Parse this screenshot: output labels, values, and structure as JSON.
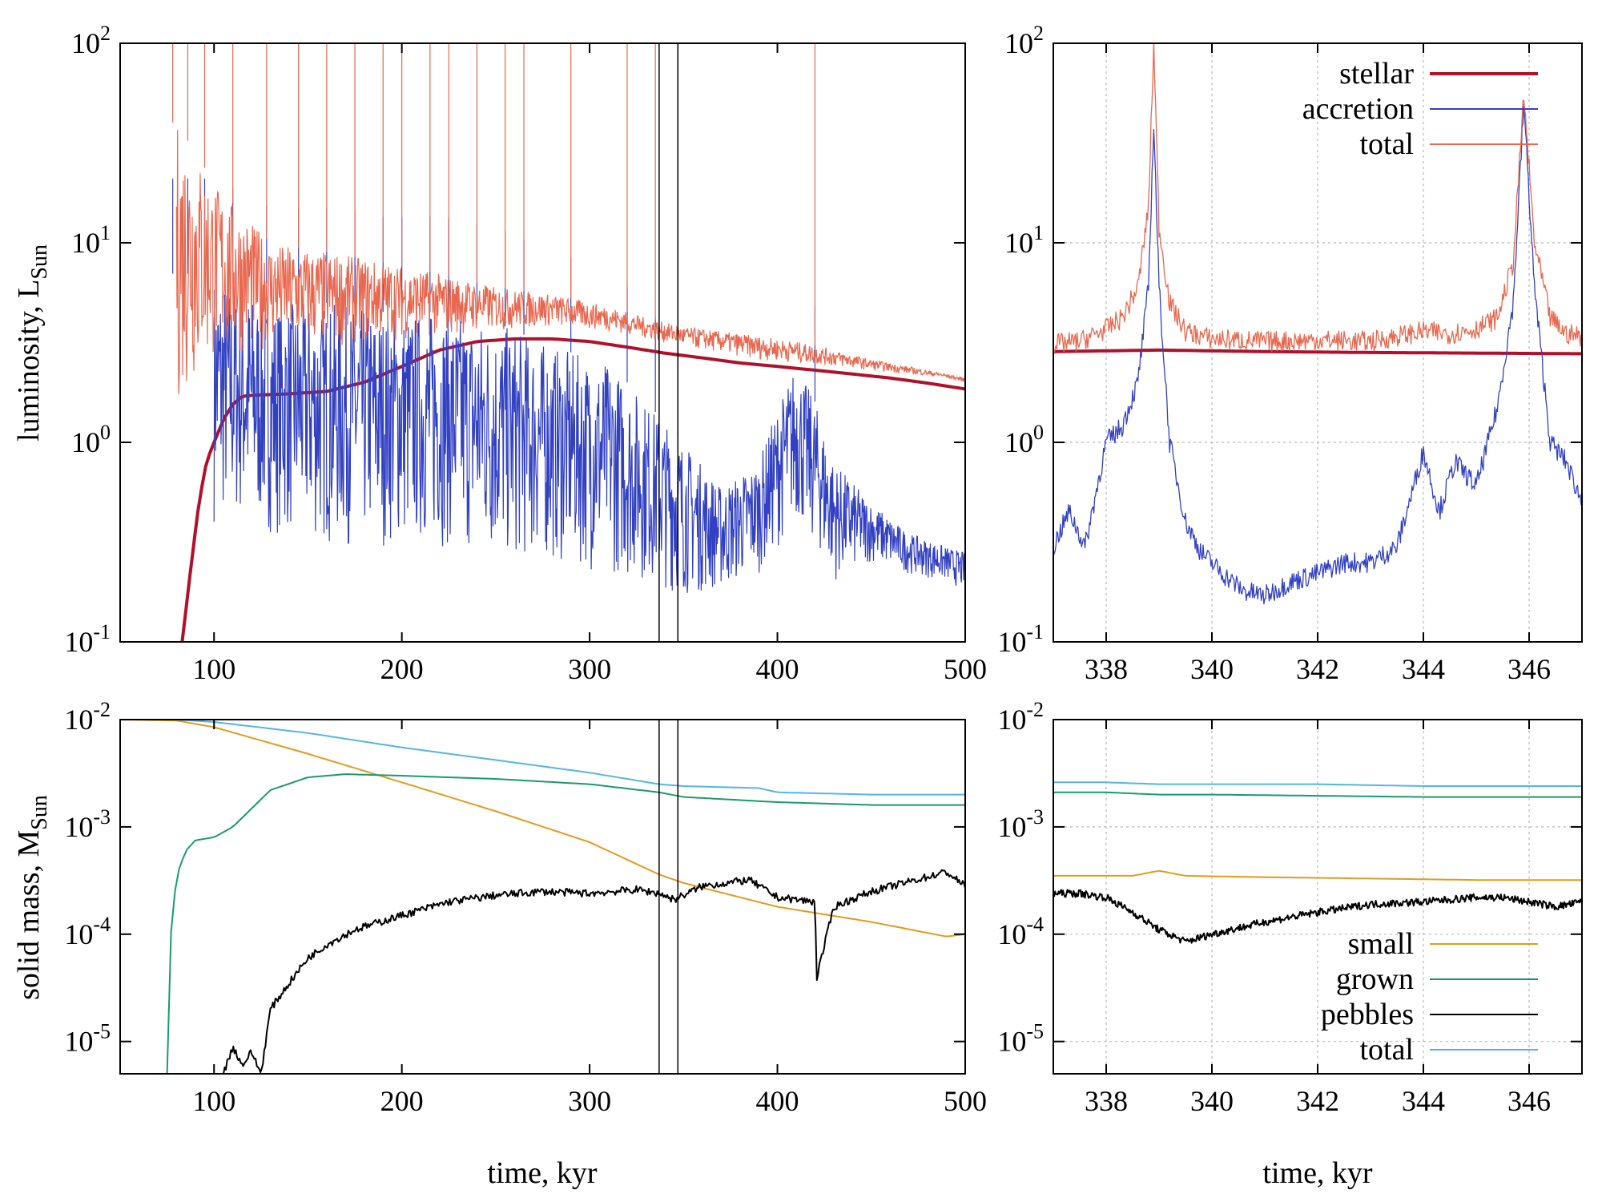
{
  "figure": {
    "xlabel": "time, kyr",
    "ylabel_top": "luminosity, L",
    "ylabel_top_sub": "Sun",
    "ylabel_bottom": "solid mass, M",
    "ylabel_bottom_sub": "Sun"
  },
  "chart_data": [
    {
      "id": "lum-full",
      "type": "line",
      "xlabel": "time, kyr",
      "ylabel": "luminosity, L_Sun",
      "xlim": [
        50,
        500
      ],
      "ylim": [
        0.1,
        100
      ],
      "yscale": "log",
      "xticks": [
        100,
        200,
        300,
        400,
        500
      ],
      "yticks": [
        {
          "base": "10",
          "exp": "-1",
          "v": 0.1
        },
        {
          "base": "10",
          "exp": "0",
          "v": 1
        },
        {
          "base": "10",
          "exp": "1",
          "v": 10
        },
        {
          "base": "10",
          "exp": "2",
          "v": 100
        }
      ],
      "markers": [
        337,
        347
      ],
      "series": [
        {
          "name": "stellar",
          "color": "#b0102a",
          "width": 4,
          "x": [
            83,
            88,
            92,
            96,
            100,
            105,
            110,
            115,
            120,
            140,
            160,
            180,
            200,
            220,
            240,
            260,
            280,
            300,
            320,
            340,
            360,
            380,
            400,
            420,
            440,
            460,
            480,
            500
          ],
          "y": [
            0.1,
            0.25,
            0.5,
            0.8,
            1.0,
            1.3,
            1.55,
            1.7,
            1.72,
            1.75,
            1.8,
            2.0,
            2.4,
            2.9,
            3.2,
            3.3,
            3.3,
            3.2,
            3.0,
            2.8,
            2.65,
            2.5,
            2.4,
            2.3,
            2.2,
            2.1,
            1.98,
            1.85
          ]
        },
        {
          "name": "accretion",
          "color": "#3241c2",
          "width": 1.2,
          "band": true,
          "x": [
            100,
            130,
            160,
            190,
            220,
            250,
            280,
            310,
            330,
            350,
            370,
            390,
            400,
            410,
            420,
            430,
            450,
            470,
            490,
            500
          ],
          "hi": [
            7,
            5,
            5,
            4.5,
            4.5,
            4,
            3,
            2.5,
            1.6,
            1.0,
            0.6,
            0.8,
            1.5,
            2.5,
            1.6,
            0.8,
            0.5,
            0.35,
            0.3,
            0.28
          ],
          "lo": [
            0.4,
            0.35,
            0.3,
            0.3,
            0.3,
            0.25,
            0.25,
            0.22,
            0.2,
            0.17,
            0.18,
            0.22,
            0.3,
            0.4,
            0.3,
            0.2,
            0.25,
            0.22,
            0.2,
            0.18
          ]
        },
        {
          "name": "total",
          "color": "#e8684f",
          "width": 1.2,
          "band": true,
          "x": [
            80,
            100,
            130,
            160,
            190,
            220,
            250,
            280,
            310,
            330,
            350,
            370,
            390,
            410,
            430,
            450,
            470,
            490,
            500
          ],
          "hi": [
            40,
            20,
            10,
            9,
            8,
            7,
            6,
            5.5,
            4.8,
            4.2,
            3.8,
            3.6,
            3.4,
            3.2,
            2.9,
            2.6,
            2.4,
            2.2,
            2.1
          ],
          "lo": [
            1.5,
            2.5,
            3.0,
            3.0,
            3.2,
            3.4,
            3.6,
            3.8,
            3.6,
            3.3,
            3.0,
            2.8,
            2.6,
            2.5,
            2.4,
            2.3,
            2.2,
            2.1,
            2.0
          ]
        }
      ],
      "spikes": [
        78,
        86,
        95,
        110,
        128,
        145,
        160,
        175,
        190,
        200,
        215,
        225,
        240,
        255,
        265,
        290,
        320,
        335,
        347,
        420
      ]
    },
    {
      "id": "lum-zoom",
      "type": "line",
      "xlim": [
        337,
        347
      ],
      "ylim": [
        0.1,
        100
      ],
      "yscale": "log",
      "grid": true,
      "xticks": [
        338,
        340,
        342,
        344,
        346
      ],
      "yticks": [
        {
          "base": "10",
          "exp": "-1",
          "v": 0.1
        },
        {
          "base": "10",
          "exp": "0",
          "v": 1
        },
        {
          "base": "10",
          "exp": "1",
          "v": 10
        },
        {
          "base": "10",
          "exp": "2",
          "v": 100
        }
      ],
      "legend_position": "top-right",
      "series": [
        {
          "name": "stellar",
          "color": "#b0102a",
          "width": 4,
          "x": [
            337,
            339,
            341,
            343,
            345,
            347
          ],
          "y": [
            2.85,
            2.9,
            2.85,
            2.82,
            2.8,
            2.78
          ]
        },
        {
          "name": "accretion",
          "color": "#3241c2",
          "width": 1.3,
          "x": [
            337,
            337.3,
            337.6,
            338.0,
            338.3,
            338.6,
            338.8,
            338.9,
            339.0,
            339.2,
            339.5,
            339.8,
            340.2,
            340.6,
            341.0,
            341.5,
            342.0,
            342.5,
            343.0,
            343.5,
            344.0,
            344.3,
            344.6,
            345.0,
            345.4,
            345.7,
            345.9,
            346.1,
            346.4,
            346.7,
            347
          ],
          "y": [
            0.3,
            0.45,
            0.3,
            1.0,
            1.2,
            2.0,
            6,
            40,
            6,
            1.0,
            0.4,
            0.28,
            0.22,
            0.18,
            0.17,
            0.2,
            0.22,
            0.25,
            0.25,
            0.3,
            0.9,
            0.45,
            0.8,
            0.6,
            1.5,
            5,
            50,
            6,
            1.0,
            0.8,
            0.5
          ]
        },
        {
          "name": "total",
          "color": "#e8684f",
          "width": 1.3,
          "x": [
            337,
            337.5,
            338.0,
            338.3,
            338.6,
            338.8,
            338.9,
            339.0,
            339.2,
            339.5,
            340,
            341,
            342,
            343,
            343.5,
            344,
            344.5,
            345,
            345.4,
            345.7,
            345.9,
            346.1,
            346.4,
            346.7,
            347
          ],
          "y": [
            3.1,
            3.2,
            3.7,
            4.2,
            6,
            15,
            100,
            12,
            5,
            3.6,
            3.3,
            3.2,
            3.25,
            3.2,
            3.4,
            3.6,
            3.5,
            3.7,
            4.2,
            8,
            55,
            10,
            4.2,
            3.5,
            3.4
          ]
        }
      ]
    },
    {
      "id": "mass-full",
      "type": "line",
      "xlim": [
        50,
        500
      ],
      "ylim": [
        5e-06,
        0.01
      ],
      "yscale": "log",
      "xticks": [
        100,
        200,
        300,
        400,
        500
      ],
      "yticks": [
        {
          "base": "10",
          "exp": "-5",
          "v": 1e-05
        },
        {
          "base": "10",
          "exp": "-4",
          "v": 0.0001
        },
        {
          "base": "10",
          "exp": "-3",
          "v": 0.001
        },
        {
          "base": "10",
          "exp": "-2",
          "v": 0.01
        }
      ],
      "markers": [
        337,
        347
      ],
      "series": [
        {
          "name": "small",
          "color": "#e49a1c",
          "width": 2,
          "x": [
            50,
            80,
            100,
            150,
            200,
            250,
            300,
            337,
            350,
            400,
            450,
            490,
            500
          ],
          "y": [
            0.01,
            0.0098,
            0.0085,
            0.0048,
            0.0026,
            0.0014,
            0.00072,
            0.00036,
            0.0003,
            0.00018,
            0.00013,
            9.5e-05,
            0.0001
          ]
        },
        {
          "name": "grown",
          "color": "#1a9a6c",
          "width": 2,
          "x": [
            75,
            77,
            80,
            85,
            90,
            100,
            110,
            130,
            150,
            170,
            200,
            250,
            300,
            337,
            350,
            400,
            450,
            500
          ],
          "y": [
            5e-06,
            0.0001,
            0.00035,
            0.0006,
            0.00075,
            0.0008,
            0.001,
            0.0022,
            0.0029,
            0.0031,
            0.003,
            0.0028,
            0.0025,
            0.0021,
            0.0019,
            0.0017,
            0.0016,
            0.0016
          ]
        },
        {
          "name": "pebbles",
          "color": "#000000",
          "width": 2,
          "x": [
            105,
            110,
            115,
            120,
            125,
            130,
            140,
            150,
            160,
            175,
            200,
            225,
            250,
            275,
            300,
            325,
            337,
            345,
            360,
            385,
            400,
            420,
            421,
            430,
            450,
            490,
            500
          ],
          "y": [
            5e-06,
            9e-06,
            6e-06,
            8e-06,
            5e-06,
            2e-05,
            3.5e-05,
            6e-05,
            8e-05,
            0.00011,
            0.00015,
            0.0002,
            0.00023,
            0.00025,
            0.00024,
            0.00026,
            0.00024,
            0.00021,
            0.00028,
            0.00032,
            0.00022,
            0.0002,
            4e-05,
            0.00018,
            0.00025,
            0.00038,
            0.00028
          ]
        },
        {
          "name": "total",
          "color": "#56b4e9",
          "width": 2,
          "x": [
            50,
            80,
            100,
            150,
            200,
            250,
            300,
            337,
            350,
            390,
            400,
            450,
            500
          ],
          "y": [
            0.01,
            0.01,
            0.0095,
            0.0075,
            0.0055,
            0.0042,
            0.0032,
            0.0025,
            0.0024,
            0.0023,
            0.0021,
            0.002,
            0.002
          ]
        }
      ]
    },
    {
      "id": "mass-zoom",
      "type": "line",
      "xlim": [
        337,
        347
      ],
      "ylim": [
        5e-06,
        0.01
      ],
      "yscale": "log",
      "grid": true,
      "xticks": [
        338,
        340,
        342,
        344,
        346
      ],
      "yticks": [
        {
          "base": "10",
          "exp": "-5",
          "v": 1e-05
        },
        {
          "base": "10",
          "exp": "-4",
          "v": 0.0001
        },
        {
          "base": "10",
          "exp": "-3",
          "v": 0.001
        },
        {
          "base": "10",
          "exp": "-2",
          "v": 0.01
        }
      ],
      "legend_position": "bottom-right",
      "series": [
        {
          "name": "small",
          "color": "#e49a1c",
          "width": 2,
          "x": [
            337,
            338.5,
            339.0,
            339.5,
            341,
            343,
            345,
            347
          ],
          "y": [
            0.00035,
            0.00035,
            0.00039,
            0.00035,
            0.00034,
            0.00033,
            0.00032,
            0.00032
          ]
        },
        {
          "name": "grown",
          "color": "#1a9a6c",
          "width": 2,
          "x": [
            337,
            338,
            339,
            340,
            342,
            344,
            346,
            347
          ],
          "y": [
            0.0021,
            0.0021,
            0.002,
            0.002,
            0.00195,
            0.0019,
            0.0019,
            0.0019
          ]
        },
        {
          "name": "pebbles",
          "color": "#000000",
          "width": 2,
          "x": [
            337,
            337.5,
            338.0,
            338.5,
            339.0,
            339.5,
            340,
            341,
            342,
            343,
            344,
            345,
            345.5,
            346,
            346.5,
            347
          ],
          "y": [
            0.00024,
            0.00024,
            0.00022,
            0.00016,
            0.00011,
            8.5e-05,
            0.0001,
            0.00013,
            0.00016,
            0.00019,
            0.0002,
            0.00022,
            0.00022,
            0.0002,
            0.00018,
            0.0002
          ]
        },
        {
          "name": "total",
          "color": "#56b4e9",
          "width": 2,
          "x": [
            337,
            338,
            339,
            340,
            342,
            344,
            346,
            347
          ],
          "y": [
            0.0026,
            0.0026,
            0.0025,
            0.0025,
            0.0025,
            0.0024,
            0.0024,
            0.0024
          ]
        }
      ]
    }
  ]
}
